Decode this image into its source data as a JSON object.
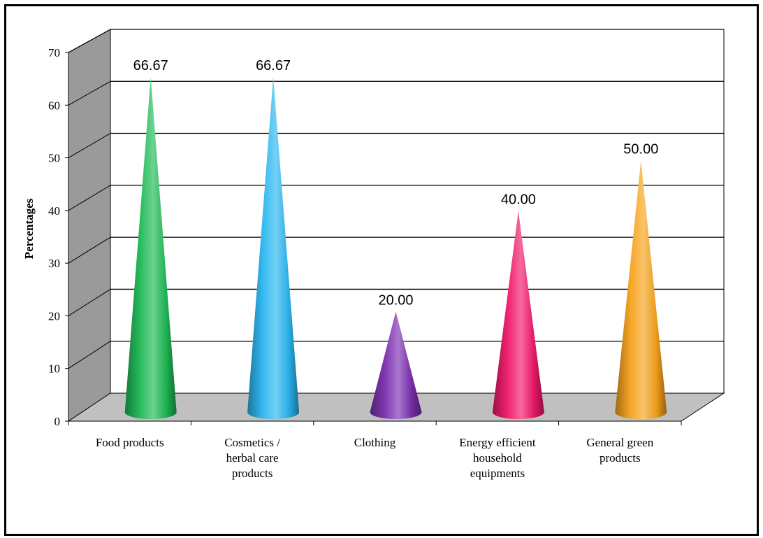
{
  "chart_data": {
    "type": "bar",
    "bar_shape": "3d-cone",
    "categories": [
      [
        "Food products"
      ],
      [
        "Cosmetics /",
        "herbal care",
        "products"
      ],
      [
        "Clothing"
      ],
      [
        "Energy efficient",
        "household",
        "equipments"
      ],
      [
        "General green",
        "products"
      ]
    ],
    "values": [
      66.67,
      66.67,
      20.0,
      40.0,
      50.0
    ],
    "data_labels": [
      "66.67",
      "66.67",
      "20.00",
      "40.00",
      "50.00"
    ],
    "colors": [
      "#1DB954",
      "#29B6F0",
      "#7B2FB0",
      "#F0186A",
      "#F7A21B"
    ],
    "title": "",
    "xlabel": "",
    "ylabel": "Percentages",
    "ylim": [
      0,
      70
    ],
    "yticks": [
      "0",
      "10",
      "20",
      "30",
      "40",
      "50",
      "60",
      "70"
    ],
    "grid": true,
    "legend": "none"
  }
}
